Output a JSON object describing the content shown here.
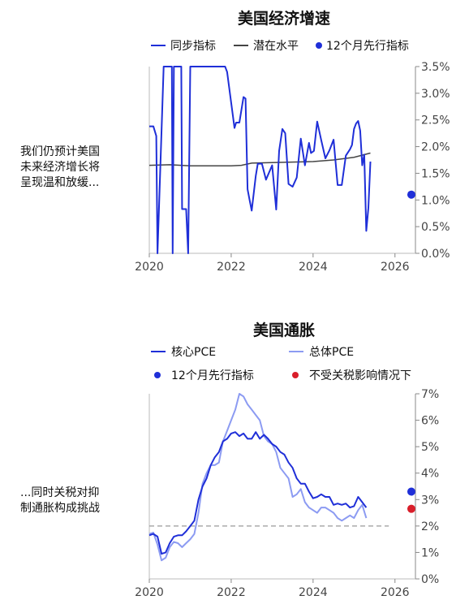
{
  "chart_data": [
    {
      "type": "line",
      "title": "美国经济增速",
      "note": "我们仍预计美国\n未来经济增长将\n呈现温和放缓...",
      "legend": [
        "同步指标",
        "潜在水平",
        "12个月先行指标"
      ],
      "xlim": [
        2020,
        2026.5
      ],
      "ylim": [
        0,
        3.5
      ],
      "x_ticks": [
        "2020",
        "2022",
        "2024",
        "2026"
      ],
      "y_ticks": [
        "3.5%",
        "3.0%",
        "2.5%",
        "2.0%",
        "1.5%",
        "1.0%",
        "0.5%",
        "0.0%"
      ],
      "colors": {
        "sync": "#1f2fd8",
        "potential": "#444444",
        "lead": "#1f2fd8"
      },
      "series": [
        {
          "name": "同步指标",
          "kind": "line",
          "color": "#1f2fd8",
          "x": [
            2020.0,
            2020.1,
            2020.17,
            2020.2,
            2020.35,
            2020.55,
            2020.57,
            2020.6,
            2020.78,
            2020.8,
            2020.9,
            2020.95,
            2021.0,
            2021.05,
            2021.2,
            2021.3,
            2021.5,
            2021.85,
            2021.9,
            2022.08,
            2022.12,
            2022.2,
            2022.3,
            2022.35,
            2022.4,
            2022.45,
            2022.5,
            2022.6,
            2022.65,
            2022.75,
            2022.85,
            2023.0,
            2023.1,
            2023.17,
            2023.25,
            2023.32,
            2023.4,
            2023.5,
            2023.6,
            2023.7,
            2023.8,
            2023.9,
            2023.95,
            2024.02,
            2024.1,
            2024.2,
            2024.3,
            2024.4,
            2024.5,
            2024.6,
            2024.7,
            2024.8,
            2024.9,
            2024.95,
            2025.0,
            2025.05,
            2025.1,
            2025.15,
            2025.2,
            2025.25,
            2025.3,
            2025.35,
            2025.4
          ],
          "y": [
            2.38,
            2.38,
            2.2,
            0.0,
            3.6,
            3.6,
            0.0,
            3.6,
            3.6,
            0.83,
            0.83,
            0.0,
            3.6,
            3.6,
            3.6,
            3.6,
            3.6,
            3.6,
            3.4,
            2.35,
            2.45,
            2.45,
            2.93,
            2.9,
            1.2,
            1.0,
            0.8,
            1.45,
            1.68,
            1.68,
            1.38,
            1.65,
            0.82,
            1.92,
            2.33,
            2.25,
            1.3,
            1.25,
            1.42,
            2.15,
            1.65,
            2.07,
            1.88,
            1.92,
            2.47,
            2.12,
            1.78,
            1.93,
            2.13,
            1.28,
            1.28,
            1.83,
            1.95,
            2.03,
            2.33,
            2.43,
            2.48,
            2.3,
            1.65,
            1.85,
            0.42,
            0.85,
            1.72
          ]
        },
        {
          "name": "潜在水平",
          "kind": "line",
          "color": "#444444",
          "x": [
            2020.0,
            2020.5,
            2021.0,
            2021.5,
            2022.0,
            2022.25,
            2022.5,
            2023.0,
            2023.5,
            2024.0,
            2024.5,
            2025.0,
            2025.4
          ],
          "y": [
            1.65,
            1.66,
            1.64,
            1.64,
            1.64,
            1.65,
            1.69,
            1.7,
            1.71,
            1.72,
            1.75,
            1.8,
            1.88
          ]
        },
        {
          "name": "12个月先行指标",
          "kind": "point",
          "color": "#1f2fd8",
          "x": [
            2026.4
          ],
          "y": [
            1.1
          ]
        }
      ]
    },
    {
      "type": "line",
      "title": "美国通胀",
      "note": "...同时关税对抑\n制通胀构成挑战",
      "legend": [
        "核心PCE",
        "总体PCE",
        "12个月先行指标",
        "不受关税影响情况下"
      ],
      "xlim": [
        2020,
        2026.5
      ],
      "ylim": [
        0,
        7
      ],
      "x_ticks": [
        "2020",
        "2022",
        "2024",
        "2026"
      ],
      "y_ticks": [
        "7%",
        "6%",
        "5%",
        "4%",
        "3%",
        "2%",
        "1%",
        "0%"
      ],
      "colors": {
        "core": "#1f2fd8",
        "headline": "#8c9bf2",
        "lead": "#1f2fd8",
        "no_tariff": "#d91e2a",
        "target": "#9a9a9a"
      },
      "reference_line": {
        "y": 2,
        "x": [
          2020,
          2025.85
        ],
        "style": "dashed"
      },
      "series": [
        {
          "name": "核心PCE",
          "kind": "line",
          "color": "#1f2fd8",
          "x": [
            2020.0,
            2020.1,
            2020.2,
            2020.3,
            2020.4,
            2020.5,
            2020.6,
            2020.7,
            2020.8,
            2020.9,
            2021.0,
            2021.1,
            2021.2,
            2021.3,
            2021.4,
            2021.5,
            2021.6,
            2021.7,
            2021.8,
            2021.9,
            2022.0,
            2022.1,
            2022.2,
            2022.3,
            2022.4,
            2022.5,
            2022.6,
            2022.7,
            2022.8,
            2022.9,
            2023.0,
            2023.1,
            2023.2,
            2023.3,
            2023.4,
            2023.5,
            2023.6,
            2023.7,
            2023.8,
            2023.9,
            2024.0,
            2024.1,
            2024.2,
            2024.3,
            2024.4,
            2024.5,
            2024.6,
            2024.7,
            2024.8,
            2024.9,
            2025.0,
            2025.1,
            2025.2,
            2025.3
          ],
          "y": [
            1.65,
            1.7,
            1.6,
            0.95,
            1.0,
            1.35,
            1.6,
            1.65,
            1.65,
            1.8,
            2.0,
            2.2,
            3.0,
            3.5,
            3.8,
            4.3,
            4.6,
            4.8,
            5.2,
            5.3,
            5.5,
            5.55,
            5.4,
            5.5,
            5.3,
            5.3,
            5.55,
            5.3,
            5.45,
            5.3,
            5.1,
            5.0,
            4.8,
            4.7,
            4.4,
            4.2,
            3.8,
            3.6,
            3.6,
            3.3,
            3.05,
            3.1,
            3.2,
            3.1,
            3.1,
            2.8,
            2.85,
            2.8,
            2.85,
            2.7,
            2.75,
            3.1,
            2.9,
            2.7
          ]
        },
        {
          "name": "总体PCE",
          "kind": "line",
          "color": "#8c9bf2",
          "x": [
            2020.0,
            2020.1,
            2020.2,
            2020.3,
            2020.4,
            2020.5,
            2020.6,
            2020.7,
            2020.8,
            2020.9,
            2021.0,
            2021.1,
            2021.2,
            2021.3,
            2021.4,
            2021.5,
            2021.6,
            2021.7,
            2021.8,
            2021.9,
            2022.0,
            2022.1,
            2022.15,
            2022.2,
            2022.3,
            2022.4,
            2022.5,
            2022.6,
            2022.7,
            2022.8,
            2022.9,
            2023.0,
            2023.1,
            2023.2,
            2023.3,
            2023.4,
            2023.5,
            2023.6,
            2023.7,
            2023.8,
            2023.9,
            2024.0,
            2024.1,
            2024.2,
            2024.3,
            2024.4,
            2024.5,
            2024.6,
            2024.7,
            2024.8,
            2024.9,
            2025.0,
            2025.1,
            2025.2,
            2025.3
          ],
          "y": [
            1.7,
            1.75,
            1.3,
            0.7,
            0.8,
            1.2,
            1.4,
            1.35,
            1.2,
            1.35,
            1.5,
            1.7,
            2.5,
            3.6,
            4.0,
            4.3,
            4.3,
            4.4,
            5.2,
            5.6,
            6.0,
            6.4,
            6.7,
            7.0,
            6.9,
            6.6,
            6.4,
            6.2,
            6.0,
            5.4,
            5.2,
            5.1,
            4.8,
            4.2,
            4.0,
            3.8,
            3.1,
            3.2,
            3.4,
            2.9,
            2.7,
            2.6,
            2.5,
            2.7,
            2.7,
            2.6,
            2.5,
            2.3,
            2.2,
            2.3,
            2.4,
            2.3,
            2.6,
            2.8,
            2.3
          ]
        },
        {
          "name": "12个月先行指标",
          "kind": "point",
          "color": "#1f2fd8",
          "x": [
            2026.4
          ],
          "y": [
            3.3
          ]
        },
        {
          "name": "不受关税影响情况下",
          "kind": "point",
          "color": "#d91e2a",
          "x": [
            2026.4
          ],
          "y": [
            2.65
          ]
        }
      ]
    }
  ]
}
